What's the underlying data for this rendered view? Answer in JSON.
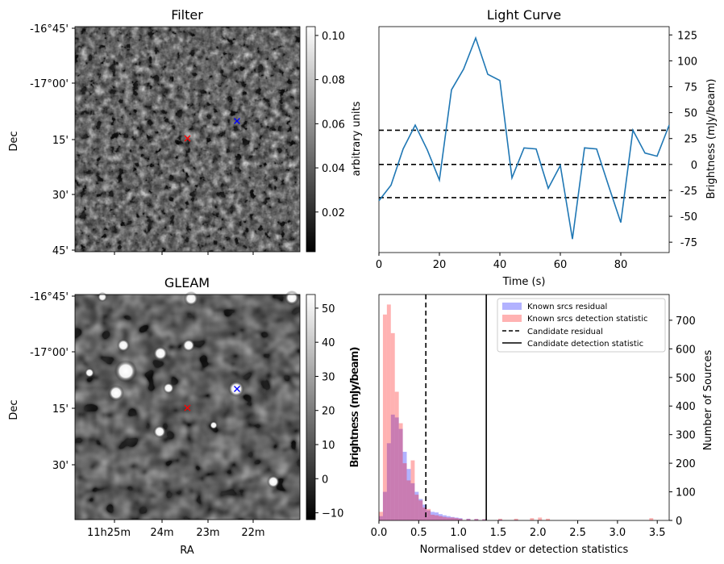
{
  "chart_data": [
    {
      "type": "heatmap",
      "id": "filter",
      "title": "Filter",
      "ylabel": "Dec",
      "y_ticks": [
        "-16°45'",
        "-17°00'",
        "15'",
        "30'",
        "45'"
      ],
      "colorbar": {
        "label": "arbitrary units",
        "range": [
          0.002,
          0.104
        ],
        "ticks": [
          "0.02",
          "0.04",
          "0.06",
          "0.08",
          "0.10"
        ],
        "tick_values": [
          0.02,
          0.04,
          0.06,
          0.08,
          0.1
        ]
      },
      "markers": [
        {
          "name": "candidate",
          "symbol": "x",
          "color": "#ff0000"
        },
        {
          "name": "known-source",
          "symbol": "x",
          "color": "#0000ff"
        }
      ]
    },
    {
      "type": "line",
      "id": "light-curve",
      "title": "Light Curve",
      "xlabel": "Time (s)",
      "ylabel": "Brightness (mJy/beam)",
      "xlim": [
        0,
        96
      ],
      "ylim": [
        -85,
        133
      ],
      "x_ticks": [
        0,
        20,
        40,
        60,
        80
      ],
      "y_ticks": [
        -75,
        -50,
        -25,
        0,
        25,
        50,
        75,
        100,
        125
      ],
      "x": [
        0,
        4,
        8,
        12,
        16,
        20,
        24,
        28,
        32,
        36,
        40,
        44,
        48,
        52,
        56,
        60,
        64,
        68,
        72,
        76,
        80,
        84,
        88,
        92,
        96
      ],
      "series": [
        {
          "name": "light-curve",
          "color": "#1f77b4",
          "values": [
            -35,
            -20,
            15,
            38,
            14,
            -15,
            72,
            92,
            122,
            87,
            81,
            -13,
            16,
            15,
            -23,
            -1,
            -72,
            16,
            15,
            -21,
            -56,
            33,
            11,
            8,
            38
          ]
        }
      ],
      "hlines": [
        {
          "y": 33,
          "style": "dashed"
        },
        {
          "y": 0,
          "style": "dashed"
        },
        {
          "y": -32,
          "style": "dashed"
        }
      ]
    },
    {
      "type": "heatmap",
      "id": "gleam",
      "title": "GLEAM",
      "xlabel": "RA",
      "ylabel": "Dec",
      "x_ticks": [
        "11h25m",
        "24m",
        "23m",
        "22m"
      ],
      "y_ticks": [
        "-16°45'",
        "-17°00'",
        "15'",
        "30'"
      ],
      "colorbar": {
        "label": "Brightness (mJy/beam)",
        "range": [
          -12,
          54
        ],
        "ticks": [
          "−10",
          "0",
          "10",
          "20",
          "30",
          "40",
          "50"
        ],
        "tick_values": [
          -10,
          0,
          10,
          20,
          30,
          40,
          50
        ]
      },
      "markers": [
        {
          "name": "candidate",
          "symbol": "x",
          "color": "#ff0000"
        },
        {
          "name": "known-source",
          "symbol": "x",
          "color": "#0000ff"
        }
      ]
    },
    {
      "type": "bar",
      "id": "histogram",
      "xlabel": "Normalised stdev or detection statistics",
      "ylabel_left": "Brightness (mJy/beam)",
      "ylabel_right": "Number of Sources",
      "xlim": [
        0,
        3.65
      ],
      "ylim": [
        0,
        790
      ],
      "x_ticks": [
        "0.0",
        "0.5",
        "1.0",
        "1.5",
        "2.0",
        "2.5",
        "3.0",
        "3.5"
      ],
      "x_tick_values": [
        0,
        0.5,
        1.0,
        1.5,
        2.0,
        2.5,
        3.0,
        3.5
      ],
      "y_ticks": [
        0,
        100,
        200,
        300,
        400,
        500,
        600,
        700
      ],
      "bin_width": 0.05,
      "series": [
        {
          "name": "Known srcs residual",
          "color": "#0000ff",
          "alpha": 0.3,
          "bin_starts": [
            0.0,
            0.05,
            0.1,
            0.15,
            0.2,
            0.25,
            0.3,
            0.35,
            0.4,
            0.45,
            0.5,
            0.55,
            0.6,
            0.65,
            0.7,
            0.75,
            0.8,
            0.85,
            0.9,
            0.95,
            1.0,
            1.1,
            1.2,
            1.3,
            1.5,
            1.7,
            2.0
          ],
          "values": [
            15,
            100,
            270,
            370,
            360,
            320,
            240,
            180,
            130,
            100,
            75,
            55,
            35,
            30,
            28,
            22,
            18,
            15,
            12,
            10,
            8,
            6,
            5,
            4,
            3,
            2,
            1
          ]
        },
        {
          "name": "Known srcs detection statistic",
          "color": "#ff0000",
          "alpha": 0.3,
          "bin_starts": [
            0.0,
            0.05,
            0.1,
            0.15,
            0.2,
            0.25,
            0.3,
            0.35,
            0.4,
            0.45,
            0.5,
            0.55,
            0.6,
            0.65,
            0.7,
            0.75,
            0.8,
            0.85,
            0.9,
            0.95,
            1.0,
            1.1,
            1.2,
            1.3,
            1.5,
            1.7,
            1.9,
            2.0,
            2.1,
            3.4
          ],
          "values": [
            30,
            720,
            755,
            655,
            450,
            340,
            200,
            140,
            210,
            90,
            70,
            45,
            40,
            20,
            18,
            15,
            12,
            10,
            10,
            8,
            6,
            5,
            5,
            4,
            6,
            6,
            8,
            10,
            6,
            8
          ]
        }
      ],
      "vlines": [
        {
          "name": "Candidate residual",
          "x": 0.59,
          "style": "dashed"
        },
        {
          "name": "Candidate detection statistic",
          "x": 1.35,
          "style": "solid"
        }
      ],
      "legend": {
        "position": "top-right",
        "entries": [
          "Known srcs residual",
          "Known srcs detection statistic",
          "Candidate residual",
          "Candidate detection statistic"
        ]
      }
    }
  ]
}
